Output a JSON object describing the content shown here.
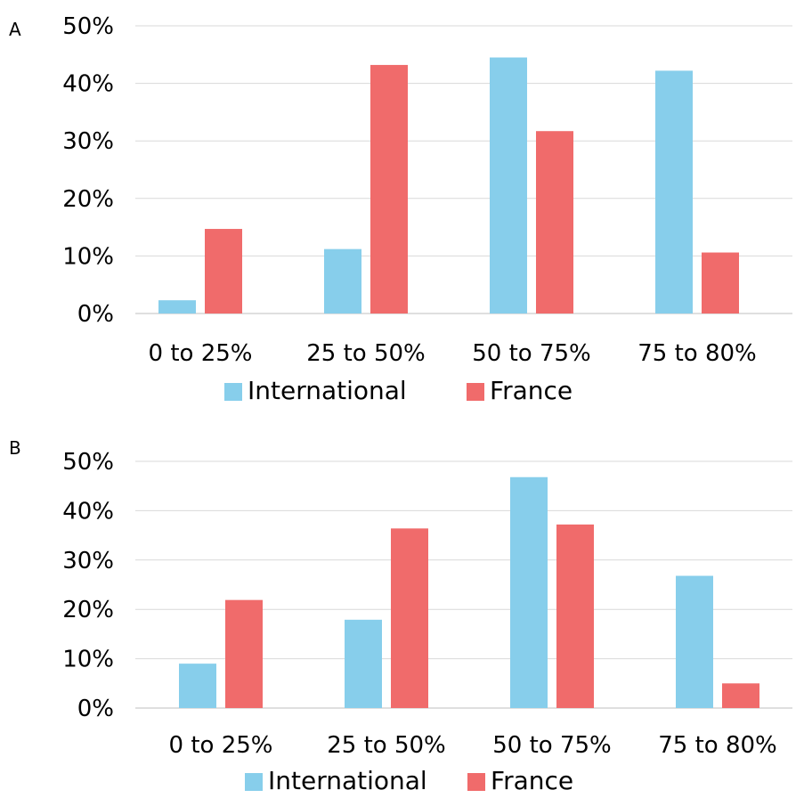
{
  "colors": {
    "international": "#87CEEB",
    "france": "#F06B6B",
    "grid": "#d9d9d9",
    "axis": "#bfbfbf"
  },
  "chart_data": [
    {
      "type": "bar",
      "panel_label": "A",
      "categories": [
        "0 to 25%",
        "25 to 50%",
        "50 to 75%",
        "75 to 80%"
      ],
      "series": [
        {
          "name": "International",
          "values": [
            2.3,
            11.2,
            44.5,
            42.2
          ]
        },
        {
          "name": "France",
          "values": [
            14.7,
            43.2,
            31.7,
            10.6
          ]
        }
      ],
      "ylim": [
        0,
        50
      ],
      "yticks": [
        "0%",
        "10%",
        "20%",
        "30%",
        "40%",
        "50%"
      ],
      "grid": true,
      "legend": "bottom"
    },
    {
      "type": "bar",
      "panel_label": "B",
      "categories": [
        "0 to 25%",
        "25 to 50%",
        "50 to 75%",
        "75 to 80%"
      ],
      "series": [
        {
          "name": "International",
          "values": [
            9.0,
            17.9,
            46.8,
            26.8
          ]
        },
        {
          "name": "France",
          "values": [
            21.9,
            36.4,
            37.2,
            5.0
          ]
        }
      ],
      "ylim": [
        0,
        50
      ],
      "yticks": [
        "0%",
        "10%",
        "20%",
        "30%",
        "40%",
        "50%"
      ],
      "grid": true,
      "legend": "bottom"
    }
  ]
}
